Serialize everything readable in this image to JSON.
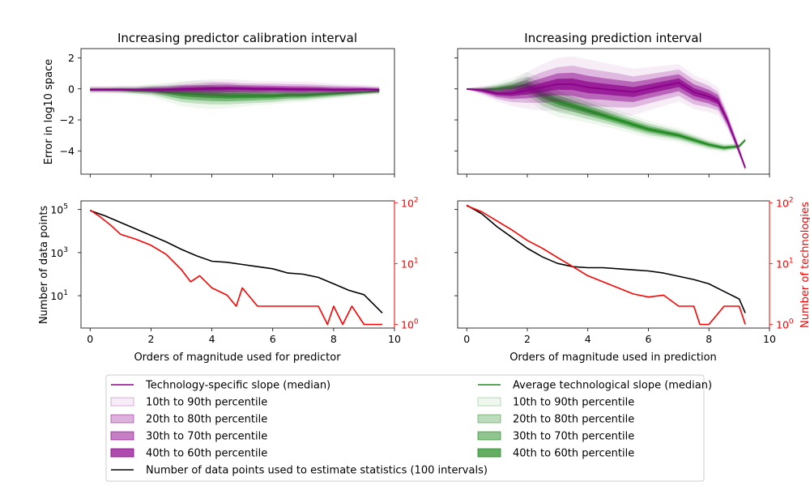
{
  "chart_data": [
    {
      "type": "area",
      "title": "Increasing predictor calibration interval",
      "xlabel": "",
      "ylabel": "Error in log10 space",
      "xlim": [
        -0.3,
        10
      ],
      "ylim": [
        -5.5,
        2.6
      ],
      "xticks": [
        0,
        2,
        4,
        6,
        8,
        10
      ],
      "xtick_labels_visible": false,
      "yticks": [
        2,
        0,
        -2,
        -4
      ],
      "ytick_labels": [
        "2",
        "0",
        "−2",
        "−4"
      ],
      "tech": {
        "x": [
          0,
          0.5,
          1,
          1.5,
          2,
          2.5,
          3,
          3.5,
          4,
          4.5,
          5,
          5.5,
          6,
          6.5,
          7,
          7.5,
          8,
          8.5,
          9,
          9.5
        ],
        "median": [
          -0.05,
          -0.05,
          -0.05,
          -0.05,
          -0.05,
          -0.05,
          -0.02,
          0.0,
          0.02,
          0.03,
          0.02,
          0.0,
          0.0,
          -0.02,
          -0.03,
          -0.03,
          -0.05,
          -0.05,
          -0.03,
          -0.05
        ],
        "hw": [
          [
            0.25,
            0.25,
            0.25,
            0.25,
            0.3,
            0.35,
            0.45,
            0.55,
            0.6,
            0.6,
            0.55,
            0.5,
            0.5,
            0.5,
            0.5,
            0.45,
            0.4,
            0.35,
            0.3,
            0.25
          ],
          [
            0.15,
            0.15,
            0.15,
            0.15,
            0.2,
            0.25,
            0.3,
            0.35,
            0.4,
            0.4,
            0.35,
            0.35,
            0.33,
            0.33,
            0.33,
            0.3,
            0.27,
            0.24,
            0.2,
            0.17
          ],
          [
            0.08,
            0.08,
            0.08,
            0.08,
            0.12,
            0.15,
            0.2,
            0.22,
            0.25,
            0.25,
            0.22,
            0.22,
            0.2,
            0.2,
            0.2,
            0.18,
            0.17,
            0.15,
            0.12,
            0.1
          ],
          [
            0.04,
            0.04,
            0.04,
            0.04,
            0.06,
            0.07,
            0.1,
            0.11,
            0.12,
            0.12,
            0.11,
            0.11,
            0.1,
            0.1,
            0.1,
            0.09,
            0.08,
            0.07,
            0.06,
            0.05
          ]
        ]
      },
      "avg": {
        "x": [
          0,
          0.5,
          1,
          1.5,
          2,
          2.5,
          3,
          3.5,
          4,
          4.5,
          5,
          5.5,
          6,
          6.5,
          7,
          7.5,
          8,
          8.5,
          9,
          9.5
        ],
        "median": [
          -0.05,
          -0.05,
          -0.05,
          -0.1,
          -0.1,
          -0.2,
          -0.3,
          -0.35,
          -0.4,
          -0.45,
          -0.45,
          -0.45,
          -0.45,
          -0.4,
          -0.4,
          -0.35,
          -0.3,
          -0.25,
          -0.2,
          -0.15
        ],
        "hw": [
          [
            0.2,
            0.2,
            0.25,
            0.3,
            0.4,
            0.6,
            0.8,
            0.9,
            0.9,
            0.8,
            0.7,
            0.6,
            0.55,
            0.5,
            0.45,
            0.4,
            0.35,
            0.3,
            0.25,
            0.2
          ],
          [
            0.12,
            0.12,
            0.15,
            0.2,
            0.28,
            0.4,
            0.55,
            0.6,
            0.6,
            0.55,
            0.5,
            0.45,
            0.4,
            0.35,
            0.32,
            0.28,
            0.24,
            0.2,
            0.16,
            0.13
          ],
          [
            0.07,
            0.07,
            0.09,
            0.12,
            0.17,
            0.25,
            0.35,
            0.38,
            0.38,
            0.35,
            0.32,
            0.28,
            0.25,
            0.22,
            0.2,
            0.18,
            0.15,
            0.13,
            0.1,
            0.08
          ],
          [
            0.03,
            0.03,
            0.04,
            0.06,
            0.08,
            0.12,
            0.17,
            0.19,
            0.19,
            0.17,
            0.16,
            0.14,
            0.12,
            0.11,
            0.1,
            0.09,
            0.07,
            0.06,
            0.05,
            0.04
          ]
        ]
      }
    },
    {
      "type": "area",
      "title": "Increasing prediction interval",
      "xlabel": "",
      "ylabel": "",
      "xlim": [
        -0.3,
        10
      ],
      "ylim": [
        -5.5,
        2.6
      ],
      "xticks": [
        0,
        2,
        4,
        6,
        8,
        10
      ],
      "xtick_labels_visible": false,
      "yticks": [
        2,
        0,
        -2,
        -4
      ],
      "ytick_labels_visible": false,
      "tech": {
        "x": [
          0,
          0.5,
          1,
          1.5,
          2,
          2.5,
          3,
          3.5,
          4,
          4.5,
          5,
          5.5,
          6,
          6.5,
          7,
          7.5,
          8,
          8.3,
          8.6,
          8.9,
          9.2
        ],
        "median": [
          0.0,
          -0.1,
          -0.3,
          -0.3,
          -0.1,
          0.1,
          0.3,
          0.3,
          0.1,
          0.0,
          -0.1,
          -0.2,
          0.0,
          0.2,
          0.4,
          -0.2,
          -0.5,
          -0.8,
          -2.0,
          -3.5,
          -5.1
        ],
        "hw": [
          [
            0.05,
            0.3,
            0.5,
            0.8,
            1.2,
            1.5,
            1.7,
            1.8,
            1.8,
            1.7,
            1.6,
            1.5,
            1.4,
            1.3,
            1.2,
            1.1,
            1.0,
            0.9,
            0.6,
            0.4,
            0.2
          ],
          [
            0.03,
            0.2,
            0.35,
            0.55,
            0.8,
            1.0,
            1.1,
            1.2,
            1.2,
            1.15,
            1.1,
            1.0,
            0.95,
            0.9,
            0.85,
            0.8,
            0.7,
            0.6,
            0.4,
            0.3,
            0.15
          ],
          [
            0.02,
            0.12,
            0.22,
            0.35,
            0.5,
            0.6,
            0.7,
            0.75,
            0.75,
            0.7,
            0.68,
            0.65,
            0.6,
            0.58,
            0.55,
            0.5,
            0.45,
            0.4,
            0.3,
            0.2,
            0.1
          ],
          [
            0.01,
            0.06,
            0.11,
            0.17,
            0.25,
            0.3,
            0.35,
            0.37,
            0.37,
            0.35,
            0.34,
            0.32,
            0.3,
            0.29,
            0.28,
            0.25,
            0.23,
            0.2,
            0.15,
            0.1,
            0.05
          ]
        ]
      },
      "avg": {
        "x": [
          0,
          0.5,
          1,
          1.5,
          2,
          2.5,
          3,
          3.5,
          4,
          4.5,
          5,
          5.5,
          6,
          6.5,
          7,
          7.5,
          8,
          8.5,
          9,
          9.2
        ],
        "median": [
          0.0,
          -0.05,
          0.0,
          0.1,
          0.2,
          -0.4,
          -0.8,
          -1.1,
          -1.4,
          -1.7,
          -2.0,
          -2.3,
          -2.6,
          -2.8,
          -3.0,
          -3.3,
          -3.6,
          -3.8,
          -3.7,
          -3.3
        ],
        "hw": [
          [
            0.05,
            0.2,
            0.4,
            0.6,
            0.9,
            1.0,
            1.0,
            0.9,
            0.8,
            0.7,
            0.65,
            0.6,
            0.55,
            0.5,
            0.45,
            0.4,
            0.35,
            0.3,
            0.2,
            0.15
          ],
          [
            0.03,
            0.13,
            0.27,
            0.4,
            0.6,
            0.7,
            0.68,
            0.6,
            0.55,
            0.48,
            0.43,
            0.4,
            0.37,
            0.33,
            0.3,
            0.27,
            0.24,
            0.2,
            0.14,
            0.1
          ],
          [
            0.02,
            0.08,
            0.16,
            0.24,
            0.36,
            0.42,
            0.4,
            0.36,
            0.33,
            0.29,
            0.26,
            0.24,
            0.22,
            0.2,
            0.18,
            0.16,
            0.14,
            0.12,
            0.08,
            0.06
          ],
          [
            0.01,
            0.04,
            0.08,
            0.12,
            0.18,
            0.21,
            0.2,
            0.18,
            0.16,
            0.14,
            0.13,
            0.12,
            0.11,
            0.1,
            0.09,
            0.08,
            0.07,
            0.06,
            0.04,
            0.03
          ]
        ]
      }
    },
    {
      "type": "line",
      "title": "",
      "xlabel": "Orders of magnitude used for predictor",
      "ylabel": "Number of data points",
      "ylabel_right": "",
      "xlim": [
        -0.3,
        10
      ],
      "y_scale": "log",
      "ylim_log10": [
        -0.5,
        5.4
      ],
      "y2_scale": "log",
      "y2lim_log10": [
        -0.06,
        2.03
      ],
      "xticks": [
        0,
        2,
        4,
        6,
        8,
        10
      ],
      "xtick_labels": [
        "0",
        "2",
        "4",
        "6",
        "8",
        "10"
      ],
      "yticks_log10": [
        1,
        3,
        5
      ],
      "ytick_labels": [
        [
          "10",
          "1"
        ],
        [
          "10",
          "3"
        ],
        [
          "10",
          "5"
        ]
      ],
      "y2ticks_log10": [
        0,
        1,
        2
      ],
      "y2tick_labels": [
        [
          "10",
          "0"
        ],
        [
          "10",
          "1"
        ],
        [
          "10",
          "2"
        ]
      ],
      "series": [
        {
          "label": "Number of data points",
          "color": "#000000",
          "x": [
            0,
            0.5,
            1,
            1.5,
            2,
            2.5,
            3,
            3.5,
            4,
            4.5,
            5,
            5.5,
            6,
            6.5,
            7,
            7.5,
            8,
            8.5,
            9,
            9.6
          ],
          "log10_values": [
            4.95,
            4.7,
            4.4,
            4.1,
            3.8,
            3.5,
            3.15,
            2.85,
            2.6,
            2.55,
            2.45,
            2.35,
            2.25,
            2.05,
            2.0,
            1.85,
            1.55,
            1.25,
            1.05,
            0.2
          ]
        },
        {
          "label": "Number of technologies",
          "color": "#ff0000",
          "x": [
            0,
            0.3,
            0.7,
            1,
            1.5,
            2,
            2.5,
            3,
            3.3,
            3.6,
            4,
            4.5,
            4.8,
            5,
            5.5,
            6,
            6.5,
            7,
            7.5,
            7.8,
            8,
            8.3,
            8.6,
            9,
            9.3,
            9.6
          ],
          "log10_values": [
            1.88,
            1.78,
            1.62,
            1.48,
            1.4,
            1.3,
            1.15,
            0.9,
            0.7,
            0.8,
            0.6,
            0.48,
            0.3,
            0.6,
            0.3,
            0.3,
            0.3,
            0.3,
            0.3,
            0.0,
            0.3,
            0.0,
            0.3,
            0.0,
            0.0,
            0.0
          ]
        }
      ]
    },
    {
      "type": "line",
      "title": "",
      "xlabel": "Orders of magnitude used in prediction",
      "ylabel": "",
      "ylabel_right": "Number of technologies",
      "xlim": [
        -0.3,
        10
      ],
      "y_scale": "log",
      "ylim_log10": [
        -0.5,
        5.4
      ],
      "y2_scale": "log",
      "y2lim_log10": [
        -0.06,
        2.03
      ],
      "xticks": [
        0,
        2,
        4,
        6,
        8,
        10
      ],
      "xtick_labels": [
        "0",
        "2",
        "4",
        "6",
        "8",
        "10"
      ],
      "yticks_log10": [
        1,
        3,
        5
      ],
      "ytick_labels_visible": false,
      "y2ticks_log10": [
        0,
        1,
        2
      ],
      "y2tick_labels": [
        [
          "10",
          "0"
        ],
        [
          "10",
          "1"
        ],
        [
          "10",
          "2"
        ]
      ],
      "series": [
        {
          "label": "Number of data points",
          "color": "#000000",
          "x": [
            0,
            0.5,
            1,
            1.5,
            2,
            2.5,
            3,
            3.5,
            4,
            4.5,
            5,
            5.5,
            6,
            6.5,
            7,
            7.5,
            8,
            8.5,
            9,
            9.2
          ],
          "log10_values": [
            5.2,
            4.8,
            4.2,
            3.7,
            3.2,
            2.8,
            2.5,
            2.35,
            2.3,
            2.3,
            2.25,
            2.2,
            2.15,
            2.05,
            1.9,
            1.75,
            1.55,
            1.2,
            0.85,
            0.2
          ]
        },
        {
          "label": "Number of technologies",
          "color": "#ff0000",
          "x": [
            0,
            0.5,
            1,
            1.5,
            2,
            2.5,
            3,
            3.5,
            4,
            4.5,
            5,
            5.5,
            6,
            6.5,
            7,
            7.5,
            7.7,
            8,
            8.5,
            9,
            9.2
          ],
          "log10_values": [
            1.95,
            1.85,
            1.7,
            1.55,
            1.38,
            1.25,
            1.1,
            0.95,
            0.8,
            0.7,
            0.6,
            0.5,
            0.45,
            0.48,
            0.3,
            0.3,
            0.0,
            0.0,
            0.3,
            0.3,
            0.0
          ]
        }
      ]
    }
  ],
  "colors": {
    "tech_line": "#8b008b",
    "tech_band": "#8b008b",
    "avg_line": "#228b22",
    "avg_band": "#228b22",
    "points_line": "#000000",
    "technologies_line": "#ff0000"
  },
  "band_alphas": [
    0.07,
    0.22,
    0.45,
    0.68
  ],
  "legend": {
    "left": [
      {
        "kind": "line",
        "color": "#8b008b",
        "label": "Technology-specific slope (median)"
      },
      {
        "kind": "patch",
        "color": "#8b008b",
        "alpha": 0.07,
        "label": "10th to 90th percentile"
      },
      {
        "kind": "patch",
        "color": "#8b008b",
        "alpha": 0.3,
        "label": "20th to 80th percentile"
      },
      {
        "kind": "patch",
        "color": "#8b008b",
        "alpha": 0.5,
        "label": "30th to 70th percentile"
      },
      {
        "kind": "patch",
        "color": "#8b008b",
        "alpha": 0.7,
        "label": "40th to 60th percentile"
      },
      {
        "kind": "line",
        "color": "#000000",
        "label": "Number of data points used to estimate statistics (100 intervals)"
      }
    ],
    "right": [
      {
        "kind": "line",
        "color": "#228b22",
        "label": "Average technological slope (median)"
      },
      {
        "kind": "patch",
        "color": "#228b22",
        "alpha": 0.07,
        "label": "10th to 90th percentile"
      },
      {
        "kind": "patch",
        "color": "#228b22",
        "alpha": 0.3,
        "label": "20th to 80th percentile"
      },
      {
        "kind": "patch",
        "color": "#228b22",
        "alpha": 0.5,
        "label": "30th to 70th percentile"
      },
      {
        "kind": "patch",
        "color": "#228b22",
        "alpha": 0.7,
        "label": "40th to 60th percentile"
      }
    ]
  }
}
